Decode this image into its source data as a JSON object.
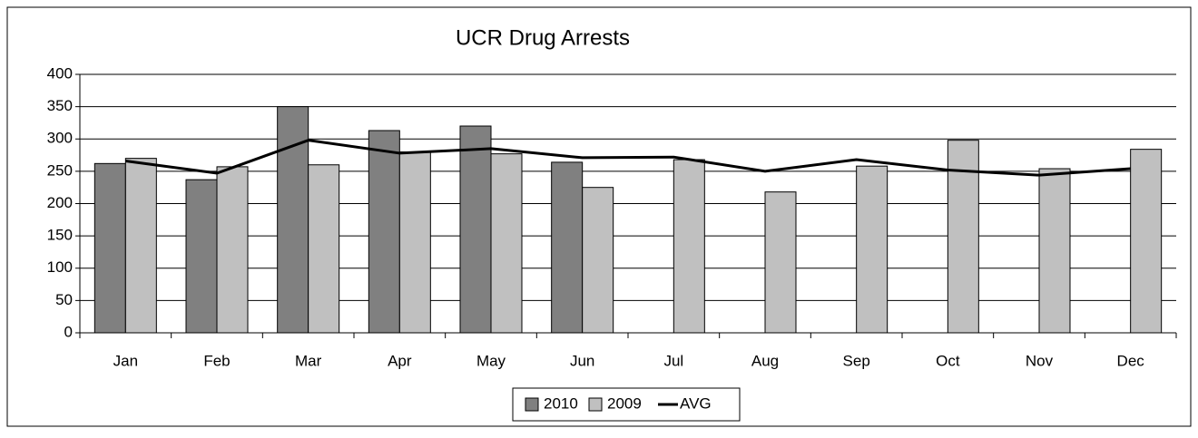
{
  "chart_data": {
    "type": "bar",
    "title": "UCR Drug Arrests",
    "categories": [
      "Jan",
      "Feb",
      "Mar",
      "Apr",
      "May",
      "Jun",
      "Jul",
      "Aug",
      "Sep",
      "Oct",
      "Nov",
      "Dec"
    ],
    "series": [
      {
        "name": "2010",
        "color": "#808080",
        "type": "bar",
        "values": [
          262,
          237,
          350,
          313,
          320,
          264,
          null,
          null,
          null,
          null,
          null,
          null
        ]
      },
      {
        "name": "2009",
        "color": "#c0c0c0",
        "type": "bar",
        "values": [
          270,
          257,
          260,
          280,
          277,
          225,
          268,
          218,
          258,
          298,
          254,
          284
        ]
      },
      {
        "name": "AVG",
        "color": "#000000",
        "type": "line",
        "values": [
          266,
          247,
          298,
          278,
          285,
          271,
          272,
          250,
          268,
          252,
          244,
          254
        ]
      }
    ],
    "ylim": [
      0,
      400
    ],
    "yticks": [
      0,
      50,
      100,
      150,
      200,
      250,
      300,
      350,
      400
    ],
    "grid": true,
    "legend": "bottom"
  }
}
